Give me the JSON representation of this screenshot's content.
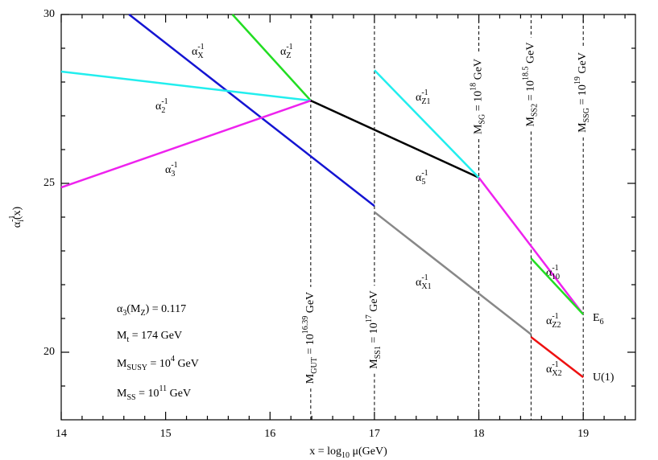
{
  "chart_data": {
    "type": "line",
    "xlabel": [
      {
        "text": "x = log"
      },
      {
        "text": "10",
        "pos": "sub"
      },
      {
        "text": " μ(GeV)"
      }
    ],
    "ylabel": [
      {
        "text": "α"
      },
      {
        "text": "-1",
        "pos": "sup"
      },
      {
        "text": "i",
        "pos": "sub",
        "stack": true
      },
      {
        "text": "(x)"
      }
    ],
    "xlim": [
      14,
      19.5
    ],
    "ylim": [
      18,
      30
    ],
    "xticks": [
      14,
      15,
      16,
      17,
      18,
      19
    ],
    "yticks": [
      20,
      25,
      30
    ],
    "xminorticks": [
      14.2,
      14.4,
      14.6,
      14.8,
      15.2,
      15.4,
      15.6,
      15.8,
      16.2,
      16.4,
      16.6,
      16.8,
      17.2,
      17.4,
      17.6,
      17.8,
      18.2,
      18.4,
      18.6,
      18.8,
      19.2,
      19.4
    ],
    "yminorticks": [
      19,
      21,
      22,
      23,
      24,
      26,
      27,
      28,
      29
    ],
    "series": [
      {
        "label": [
          {
            "text": "α"
          },
          {
            "text": "-1",
            "pos": "sup"
          },
          {
            "text": "X",
            "pos": "sub",
            "stack": true
          }
        ],
        "color": "#1414d2",
        "x": [
          14.65,
          17
        ],
        "values": [
          30,
          24.33
        ]
      },
      {
        "label": [
          {
            "text": "α"
          },
          {
            "text": "-1",
            "pos": "sup"
          },
          {
            "text": "Z",
            "pos": "sub",
            "stack": true
          }
        ],
        "color": "#22dd22",
        "x": [
          15.64,
          16.39
        ],
        "values": [
          30,
          27.45
        ]
      },
      {
        "label": [
          {
            "text": "α"
          },
          {
            "text": "-1",
            "pos": "sup"
          },
          {
            "text": "2",
            "pos": "sub",
            "stack": true
          }
        ],
        "color": "#22eeee",
        "x": [
          14,
          16.39
        ],
        "values": [
          28.31,
          27.45
        ]
      },
      {
        "label": [
          {
            "text": "α"
          },
          {
            "text": "-1",
            "pos": "sup"
          },
          {
            "text": "3",
            "pos": "sub",
            "stack": true
          }
        ],
        "color": "#ee22ee",
        "x": [
          14,
          16.39
        ],
        "values": [
          24.88,
          27.45
        ]
      },
      {
        "label": [
          {
            "text": "α"
          },
          {
            "text": "-1",
            "pos": "sup"
          },
          {
            "text": "5",
            "pos": "sub",
            "stack": true
          }
        ],
        "color": "#000000",
        "x": [
          16.39,
          18
        ],
        "values": [
          27.45,
          25.17
        ]
      },
      {
        "label": [
          {
            "text": "α"
          },
          {
            "text": "-1",
            "pos": "sup"
          },
          {
            "text": "Z1",
            "pos": "sub",
            "stack": true
          }
        ],
        "color": "#22eeee",
        "x": [
          17,
          18
        ],
        "values": [
          28.35,
          25.17
        ]
      },
      {
        "label": [
          {
            "text": "α"
          },
          {
            "text": "-1",
            "pos": "sup"
          },
          {
            "text": "10",
            "pos": "sub",
            "stack": true
          }
        ],
        "color": "#ee22ee",
        "x": [
          18,
          19
        ],
        "values": [
          25.17,
          21.12
        ]
      },
      {
        "label": [
          {
            "text": "α"
          },
          {
            "text": "-1",
            "pos": "sup"
          },
          {
            "text": "X1",
            "pos": "sub",
            "stack": true
          }
        ],
        "color": "#888888",
        "x": [
          17,
          18.5
        ],
        "values": [
          24.15,
          20.53
        ]
      },
      {
        "label": [
          {
            "text": "α"
          },
          {
            "text": "-1",
            "pos": "sup"
          },
          {
            "text": "Z2",
            "pos": "sub",
            "stack": true
          }
        ],
        "color": "#22dd22",
        "x": [
          18.5,
          19
        ],
        "values": [
          22.78,
          21.12
        ]
      },
      {
        "label": [
          {
            "text": "α"
          },
          {
            "text": "-1",
            "pos": "sup"
          },
          {
            "text": "X2",
            "pos": "sub",
            "stack": true
          }
        ],
        "color": "#ee1111",
        "x": [
          18.5,
          19
        ],
        "values": [
          20.45,
          19.26
        ]
      }
    ],
    "vlines": [
      {
        "x": 16.39,
        "label": [
          {
            "text": "M"
          },
          {
            "text": "GUT",
            "pos": "sub"
          },
          {
            "text": " = 10"
          },
          {
            "text": "16.39",
            "pos": "sup"
          },
          {
            "text": " GeV"
          }
        ]
      },
      {
        "x": 17,
        "label": [
          {
            "text": "M"
          },
          {
            "text": "SS1",
            "pos": "sub"
          },
          {
            "text": " = 10"
          },
          {
            "text": "17",
            "pos": "sup"
          },
          {
            "text": " GeV"
          }
        ]
      },
      {
        "x": 18,
        "label": [
          {
            "text": "M"
          },
          {
            "text": "SG",
            "pos": "sub"
          },
          {
            "text": " = 10"
          },
          {
            "text": "18",
            "pos": "sup"
          },
          {
            "text": " GeV"
          }
        ]
      },
      {
        "x": 18.5,
        "label": [
          {
            "text": "M"
          },
          {
            "text": "SS2",
            "pos": "sub"
          },
          {
            "text": " = 10"
          },
          {
            "text": "18.5",
            "pos": "sup"
          },
          {
            "text": " GeV"
          }
        ]
      },
      {
        "x": 19,
        "label": [
          {
            "text": "M"
          },
          {
            "text": "SSG",
            "pos": "sub"
          },
          {
            "text": " = 10"
          },
          {
            "text": "19",
            "pos": "sup"
          },
          {
            "text": " GeV"
          }
        ]
      }
    ],
    "annotations": [
      [
        {
          "text": "E"
        },
        {
          "text": "6",
          "pos": "sub"
        }
      ],
      [
        {
          "text": "U(1)"
        }
      ],
      [
        {
          "text": "α"
        },
        {
          "text": "3",
          "pos": "sub"
        },
        {
          "text": "(M"
        },
        {
          "text": "Z",
          "pos": "sub"
        },
        {
          "text": ") = 0.117"
        }
      ],
      [
        {
          "text": "M"
        },
        {
          "text": "t",
          "pos": "sub"
        },
        {
          "text": " = 174 GeV"
        }
      ],
      [
        {
          "text": "M"
        },
        {
          "text": "SUSY",
          "pos": "sub"
        },
        {
          "text": " = 10"
        },
        {
          "text": "4",
          "pos": "sup"
        },
        {
          "text": " GeV"
        }
      ],
      [
        {
          "text": "M"
        },
        {
          "text": "SS",
          "pos": "sub"
        },
        {
          "text": " = 10"
        },
        {
          "text": "11",
          "pos": "sup"
        },
        {
          "text": " GeV"
        }
      ]
    ]
  }
}
